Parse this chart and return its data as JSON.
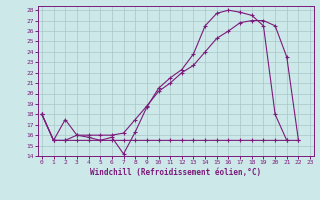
{
  "xlabel": "Windchill (Refroidissement éolien,°C)",
  "bg_color": "#cde8e8",
  "line_color": "#7b1b7b",
  "xlim": [
    0,
    23
  ],
  "ylim": [
    14,
    28
  ],
  "yticks": [
    14,
    15,
    16,
    17,
    18,
    19,
    20,
    21,
    22,
    23,
    24,
    25,
    26,
    27,
    28
  ],
  "xticks": [
    0,
    1,
    2,
    3,
    4,
    5,
    6,
    7,
    8,
    9,
    10,
    11,
    12,
    13,
    14,
    15,
    16,
    17,
    18,
    19,
    20,
    21,
    22,
    23
  ],
  "line1_x": [
    0,
    1,
    2,
    3,
    4,
    5,
    6,
    7,
    8,
    9,
    10,
    11,
    12,
    13,
    14,
    15,
    16,
    17,
    18,
    19,
    20,
    21
  ],
  "line1_y": [
    18.0,
    15.5,
    17.5,
    16.0,
    15.8,
    15.5,
    15.8,
    14.2,
    16.3,
    18.7,
    20.5,
    21.5,
    22.3,
    23.8,
    26.5,
    27.7,
    28.0,
    27.8,
    27.5,
    26.5,
    18.0,
    15.5
  ],
  "line2_x": [
    0,
    1,
    2,
    3,
    4,
    5,
    6,
    7,
    8,
    9,
    10,
    11,
    12,
    13,
    14,
    15,
    16,
    17,
    18,
    19,
    20,
    21,
    22
  ],
  "line2_y": [
    18.0,
    15.5,
    15.5,
    15.5,
    15.5,
    15.5,
    15.5,
    15.5,
    15.5,
    15.5,
    15.5,
    15.5,
    15.5,
    15.5,
    15.5,
    15.5,
    15.5,
    15.5,
    15.5,
    15.5,
    15.5,
    15.5,
    15.5
  ],
  "line3_x": [
    0,
    1,
    2,
    3,
    4,
    5,
    6,
    7,
    8,
    9,
    10,
    11,
    12,
    13,
    14,
    15,
    16,
    17,
    18,
    19,
    20,
    21,
    22
  ],
  "line3_y": [
    18.0,
    15.5,
    15.5,
    16.0,
    16.0,
    16.0,
    16.0,
    16.2,
    17.5,
    18.8,
    20.2,
    21.0,
    22.0,
    22.7,
    24.0,
    25.3,
    26.0,
    26.8,
    27.0,
    27.0,
    26.5,
    23.5,
    15.5
  ]
}
